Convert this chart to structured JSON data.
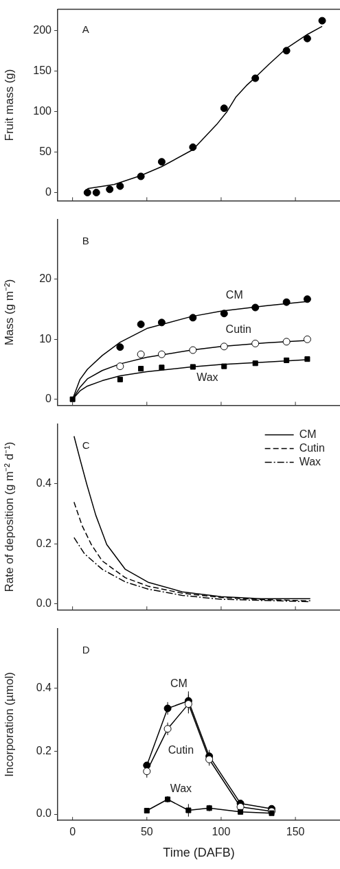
{
  "chart_data": [
    {
      "type": "scatter",
      "title": "A",
      "ylabel": "Fruit mass (g)",
      "xlim": [
        -10,
        180
      ],
      "xticks": [
        0,
        50,
        100,
        150
      ],
      "ylim": [
        -10,
        226
      ],
      "yticks": [
        0,
        50,
        100,
        150,
        200
      ],
      "tick_labels": "y",
      "series": [
        {
          "type": "scatter",
          "color": "#000000",
          "marker": "circle",
          "x": [
            10,
            16,
            25,
            32,
            46,
            60,
            81,
            102,
            123,
            144,
            158,
            168
          ],
          "values": [
            0,
            0,
            4,
            8,
            20,
            38,
            56,
            104,
            141,
            175,
            190,
            212
          ]
        },
        {
          "type": "line",
          "color": "#000000",
          "marker": "none",
          "line_style": "solid",
          "x": [
            10,
            28,
            46,
            60,
            81,
            97,
            104,
            110,
            117,
            123,
            132,
            144,
            158,
            168
          ],
          "values": [
            5,
            10,
            21,
            32,
            53,
            84,
            100,
            118,
            132,
            142,
            158,
            178,
            195,
            205
          ]
        }
      ]
    },
    {
      "type": "scatter",
      "title": "B",
      "ylabel": "Mass (g m⁻²)",
      "xlim": [
        -10,
        180
      ],
      "xticks": [
        0,
        50,
        100,
        150
      ],
      "ylim": [
        -1,
        30
      ],
      "yticks": [
        0,
        10,
        20
      ],
      "tick_labels": "y",
      "series": [
        {
          "name": "CM",
          "type": "scatter",
          "color": "#000000",
          "marker": "circle",
          "x": [
            32,
            46,
            60,
            81,
            102,
            123,
            144,
            158
          ],
          "values": [
            8.7,
            12.5,
            12.8,
            13.6,
            14.3,
            15.3,
            16.2,
            16.7
          ]
        },
        {
          "name": "Cutin",
          "type": "scatter",
          "color": "#ffffff",
          "marker": "circle",
          "x": [
            32,
            46,
            60,
            81,
            102,
            123,
            144,
            158
          ],
          "values": [
            5.5,
            7.5,
            7.5,
            8.2,
            8.8,
            9.3,
            9.6,
            10
          ]
        },
        {
          "name": "Wax",
          "type": "scatter",
          "color": "#000000",
          "marker": "square",
          "x": [
            0,
            32,
            46,
            60,
            81,
            102,
            123,
            144,
            158
          ],
          "values": [
            0,
            3.3,
            5.1,
            5.3,
            5.4,
            5.5,
            6,
            6.5,
            6.7
          ]
        },
        {
          "type": "line",
          "color": "#000000",
          "marker": "none",
          "line_style": "solid",
          "x": [
            0,
            5,
            10,
            20,
            32,
            50,
            80,
            100,
            130,
            158
          ],
          "values": [
            0,
            3.3,
            5,
            7.3,
            9.5,
            11.8,
            13.8,
            14.7,
            15.6,
            16.3
          ]
        },
        {
          "type": "line",
          "color": "#000000",
          "marker": "none",
          "line_style": "solid",
          "x": [
            0,
            5,
            10,
            20,
            32,
            50,
            80,
            100,
            130,
            158
          ],
          "values": [
            0,
            2,
            3.4,
            4.8,
            5.9,
            7,
            8.2,
            8.8,
            9.4,
            9.8
          ]
        },
        {
          "type": "line",
          "color": "#000000",
          "marker": "none",
          "line_style": "solid",
          "x": [
            0,
            5,
            10,
            20,
            32,
            50,
            80,
            100,
            130,
            158
          ],
          "values": [
            0,
            1.4,
            2.2,
            3.1,
            3.9,
            4.6,
            5.4,
            5.8,
            6.2,
            6.6
          ]
        }
      ]
    },
    {
      "type": "line",
      "title": "C",
      "ylabel": "Rate of deposition (g m⁻² d⁻¹)",
      "xlim": [
        -10,
        180
      ],
      "xticks": [
        0,
        50,
        100,
        150
      ],
      "ylim": [
        -0.02,
        0.6
      ],
      "yticks": [
        {
          "value": 0,
          "label": "0.0"
        },
        0.2,
        0.4
      ],
      "tick_labels": "y",
      "legend": "top right",
      "marker": "none",
      "series": [
        {
          "name": "CM",
          "color": "#000000",
          "line_style": "solid",
          "x": [
            1,
            5,
            9.5,
            15.6,
            23,
            35.5,
            50.8,
            73.8,
            100,
            127,
            160
          ],
          "values": [
            0.559,
            0.483,
            0.4,
            0.296,
            0.198,
            0.115,
            0.072,
            0.04,
            0.024,
            0.017,
            0.017
          ]
        },
        {
          "name": "Cutin",
          "color": "#000000",
          "line_style": "dashed",
          "x": [
            1,
            6.4,
            12.6,
            20,
            35.5,
            50.8,
            74,
            100,
            127,
            160
          ],
          "values": [
            0.339,
            0.261,
            0.198,
            0.143,
            0.087,
            0.059,
            0.035,
            0.021,
            0.014,
            0.01
          ]
        },
        {
          "name": "Wax",
          "color": "#000000",
          "line_style": "dashdot",
          "x": [
            1,
            8,
            20,
            35.5,
            50.8,
            74,
            100,
            160
          ],
          "values": [
            0.221,
            0.167,
            0.115,
            0.073,
            0.049,
            0.028,
            0.015,
            0.007
          ]
        }
      ]
    },
    {
      "type": "line",
      "title": "D",
      "xlabel": "Time (DAFB)",
      "ylabel": "Incorporation (µmol)",
      "xlim": [
        -10,
        180
      ],
      "xticks": [
        0,
        50,
        100,
        150
      ],
      "ylim": [
        -0.02,
        0.59
      ],
      "yticks": [
        {
          "value": 0,
          "label": "0.0"
        },
        0.2,
        0.4
      ],
      "line_style": "solid",
      "series": [
        {
          "name": "CM",
          "color": "#000000",
          "marker": "circle",
          "x": [
            50,
            64,
            78,
            92,
            113,
            134
          ],
          "values": [
            0.155,
            0.336,
            0.36,
            0.184,
            0.034,
            0.017
          ],
          "errors": [
            0.01,
            0.02,
            0.03,
            0.02,
            null,
            null
          ]
        },
        {
          "name": "Cutin",
          "color": "#ffffff",
          "marker": "circle",
          "x": [
            50,
            64,
            78,
            92,
            113,
            134
          ],
          "values": [
            0.136,
            0.271,
            0.35,
            0.174,
            0.023,
            0.009
          ],
          "errors": [
            0.02,
            0.02,
            0.03,
            0.02,
            null,
            null
          ]
        },
        {
          "name": "Wax",
          "color": "#000000",
          "marker": "square",
          "x": [
            50,
            64,
            78,
            92,
            113,
            134
          ],
          "values": [
            0.011,
            0.047,
            0.012,
            0.019,
            0.007,
            0.003
          ],
          "errors": [
            null,
            0.01,
            0.02,
            0.01,
            null,
            null
          ]
        }
      ]
    }
  ]
}
